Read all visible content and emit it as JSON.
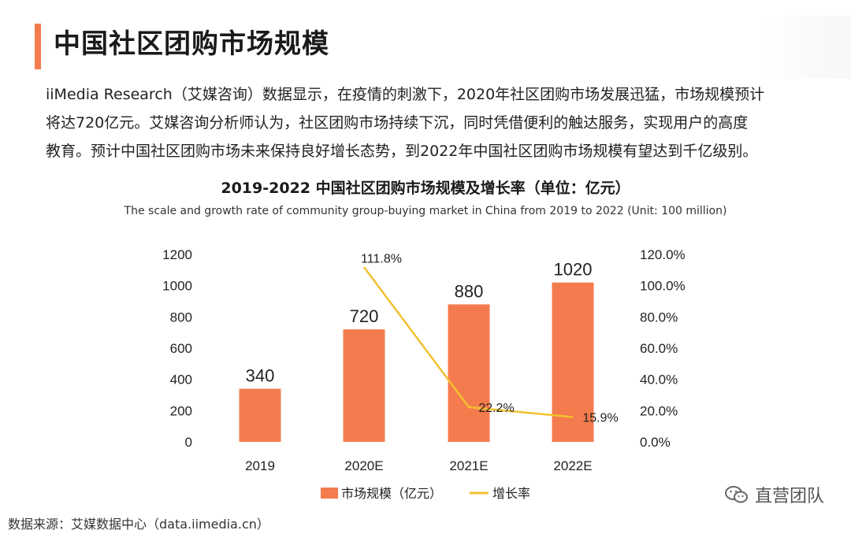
{
  "header": {
    "title": "中国社区团购市场规模"
  },
  "intro": {
    "line1": "iiMedia Research（艾媒咨询）数据显示，在疫情的刺激下，2020年社区团购市场发展迅猛，市场规模预计",
    "line2": "将达720亿元。艾媒咨询分析师认为，社区团购市场持续下沉，同时凭借便利的触达服务，实现用户的高度",
    "line3": "教育。预计中国社区团购市场未来保持良好增长态势，到2022年中国社区团购市场规模有望达到千亿级别。"
  },
  "watermark": "直营团队",
  "source": "数据来源：艾媒数据中心（data.iimedia.cn）",
  "colors": {
    "bar": "#f47b4d",
    "line": "#f2c12e",
    "accent": "#f47b4d"
  },
  "chart_data": {
    "type": "bar",
    "title": "2019-2022 中国社区团购市场规模及增长率（单位：亿元）",
    "subtitle": "The scale and growth rate of community group-buying market in China from 2019 to 2022 (Unit: 100 million)",
    "categories": [
      "2019",
      "2020E",
      "2021E",
      "2022E"
    ],
    "series": [
      {
        "name": "市场规模（亿元）",
        "type": "bar",
        "axis": "left",
        "values": [
          340,
          720,
          880,
          1020
        ],
        "labels": [
          "340",
          "720",
          "880",
          "1020"
        ]
      },
      {
        "name": "增长率",
        "type": "line",
        "axis": "right",
        "values": [
          null,
          111.8,
          22.2,
          15.9
        ],
        "labels": [
          "",
          "111.8%",
          "22.2%",
          "15.9%"
        ]
      }
    ],
    "y_left": {
      "ylim": [
        0,
        1200
      ],
      "ticks": [
        "0",
        "200",
        "400",
        "600",
        "800",
        "1000",
        "1200"
      ]
    },
    "y_right": {
      "ylim": [
        0,
        120
      ],
      "ticks": [
        "0.0%",
        "20.0%",
        "40.0%",
        "60.0%",
        "80.0%",
        "100.0%",
        "120.0%"
      ]
    },
    "grid": false,
    "legend": "bottom-center"
  }
}
